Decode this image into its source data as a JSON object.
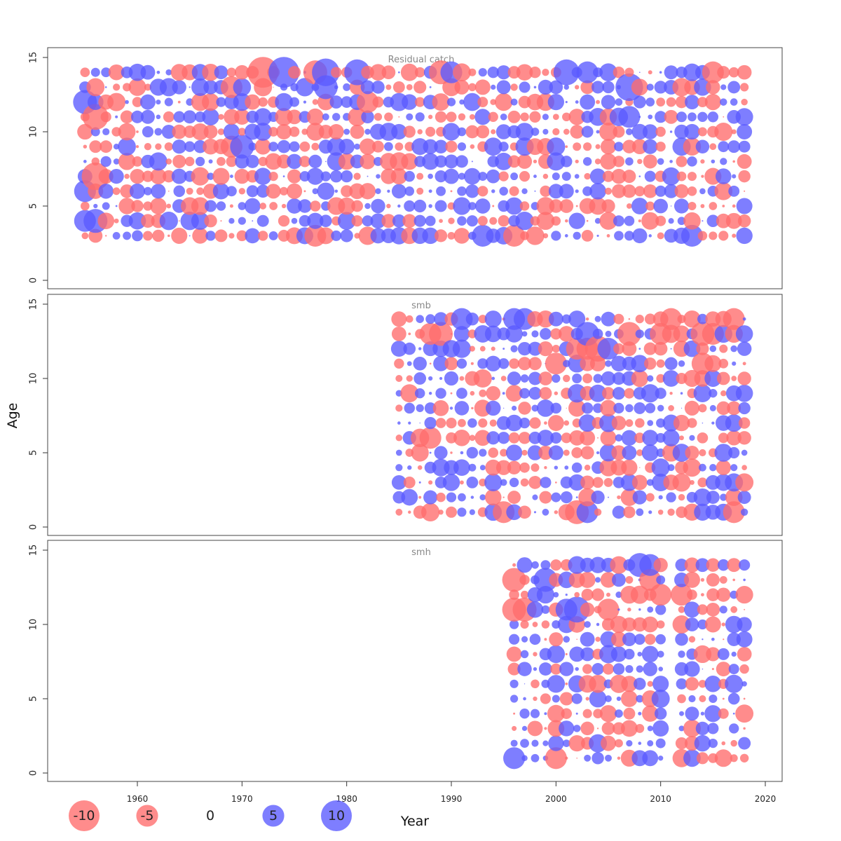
{
  "chart_data": {
    "type": "scatter",
    "subtype": "bubble-residual-by-age-and-year",
    "xlabel": "Year",
    "ylabel": "Age",
    "xlim": [
      1952,
      2022
    ],
    "ylim": [
      0,
      15
    ],
    "xticks": [
      1960,
      1970,
      1980,
      1990,
      2000,
      2010,
      2020
    ],
    "yticks": [
      0,
      5,
      10,
      15
    ],
    "colors": {
      "positive": "#5a5aff",
      "negative": "#ff6b6b"
    },
    "legend": {
      "placement": "bottom-left",
      "entries": [
        {
          "label": "-10",
          "value": -10
        },
        {
          "label": "-5",
          "value": -5
        },
        {
          "label": "0",
          "value": 0
        },
        {
          "label": "5",
          "value": 5
        },
        {
          "label": "10",
          "value": 10
        }
      ]
    },
    "panels": [
      {
        "title": "Residual catch",
        "years": [
          1955,
          2018
        ],
        "ages": [
          3,
          14
        ],
        "highlights": [
          {
            "year": 1972,
            "age": 14,
            "value": -10
          },
          {
            "year": 1974,
            "age": 14,
            "value": 10
          },
          {
            "year": 1978,
            "age": 14,
            "value": 8
          },
          {
            "year": 1977,
            "age": 14,
            "value": -6
          },
          {
            "year": 1981,
            "age": 14,
            "value": 7
          },
          {
            "year": 1989,
            "age": 14,
            "value": -6
          },
          {
            "year": 1990,
            "age": 14,
            "value": 5
          },
          {
            "year": 2001,
            "age": 14,
            "value": 7
          },
          {
            "year": 2003,
            "age": 14,
            "value": 5
          },
          {
            "year": 2015,
            "age": 14,
            "value": -5
          },
          {
            "year": 1978,
            "age": 13,
            "value": 6
          },
          {
            "year": 2007,
            "age": 13,
            "value": 8
          },
          {
            "year": 1969,
            "age": 13,
            "value": -5
          },
          {
            "year": 1955,
            "age": 12,
            "value": 6
          },
          {
            "year": 1982,
            "age": 12,
            "value": -5
          },
          {
            "year": 1956,
            "age": 11,
            "value": -7
          },
          {
            "year": 2007,
            "age": 11,
            "value": 5
          },
          {
            "year": 1970,
            "age": 9,
            "value": 6
          },
          {
            "year": 1969,
            "age": 9,
            "value": -5
          },
          {
            "year": 1956,
            "age": 7,
            "value": -8
          },
          {
            "year": 1955,
            "age": 6,
            "value": 5
          },
          {
            "year": 1956,
            "age": 4,
            "value": 6
          },
          {
            "year": 1955,
            "age": 4,
            "value": 5
          },
          {
            "year": 1977,
            "age": 3,
            "value": -5
          },
          {
            "year": 1993,
            "age": 3,
            "value": 5
          },
          {
            "year": 1996,
            "age": 3,
            "value": -5
          },
          {
            "year": 2013,
            "age": 3,
            "value": 5
          }
        ],
        "seed": 11
      },
      {
        "title": "smb",
        "years": [
          1985,
          2018
        ],
        "ages": [
          1,
          14
        ],
        "highlights": [
          {
            "year": 1996,
            "age": 14,
            "value": 5
          },
          {
            "year": 1997,
            "age": 14,
            "value": 5
          },
          {
            "year": 1991,
            "age": 14,
            "value": 5
          },
          {
            "year": 2017,
            "age": 14,
            "value": -5
          },
          {
            "year": 2011,
            "age": 14,
            "value": -5
          },
          {
            "year": 1989,
            "age": 13,
            "value": -6
          },
          {
            "year": 1988,
            "age": 13,
            "value": -5
          },
          {
            "year": 2003,
            "age": 13,
            "value": 6
          },
          {
            "year": 2007,
            "age": 13,
            "value": -6
          },
          {
            "year": 2010,
            "age": 13,
            "value": -5
          },
          {
            "year": 2014,
            "age": 13,
            "value": -6
          },
          {
            "year": 2015,
            "age": 13,
            "value": -5
          },
          {
            "year": 2002,
            "age": 12,
            "value": -5
          },
          {
            "year": 2003,
            "age": 12,
            "value": -5
          },
          {
            "year": 2004,
            "age": 12,
            "value": -7
          },
          {
            "year": 2005,
            "age": 12,
            "value": 5
          },
          {
            "year": 2000,
            "age": 11,
            "value": -5
          },
          {
            "year": 2014,
            "age": 11,
            "value": -5
          },
          {
            "year": 1988,
            "age": 6,
            "value": -5
          },
          {
            "year": 1995,
            "age": 1,
            "value": -5
          },
          {
            "year": 2002,
            "age": 1,
            "value": -6
          },
          {
            "year": 2003,
            "age": 1,
            "value": 5
          },
          {
            "year": 2017,
            "age": 1,
            "value": -5
          }
        ],
        "seed": 23
      },
      {
        "title": "smh",
        "years": [
          1996,
          2018
        ],
        "ages": [
          1,
          14
        ],
        "gap_years": [
          2011
        ],
        "highlights": [
          {
            "year": 2008,
            "age": 14,
            "value": 6
          },
          {
            "year": 2009,
            "age": 14,
            "value": 5
          },
          {
            "year": 1996,
            "age": 13,
            "value": -6
          },
          {
            "year": 1999,
            "age": 13,
            "value": 6
          },
          {
            "year": 2009,
            "age": 13,
            "value": -5
          },
          {
            "year": 2010,
            "age": 12,
            "value": -5
          },
          {
            "year": 2012,
            "age": 12,
            "value": -5
          },
          {
            "year": 1996,
            "age": 11,
            "value": -6
          },
          {
            "year": 1997,
            "age": 11,
            "value": -6
          },
          {
            "year": 2002,
            "age": 11,
            "value": 7
          },
          {
            "year": 2001,
            "age": 11,
            "value": 5
          },
          {
            "year": 2005,
            "age": 11,
            "value": -5
          },
          {
            "year": 2000,
            "age": 1,
            "value": -5
          },
          {
            "year": 1996,
            "age": 1,
            "value": 5
          }
        ],
        "seed": 37
      }
    ]
  }
}
